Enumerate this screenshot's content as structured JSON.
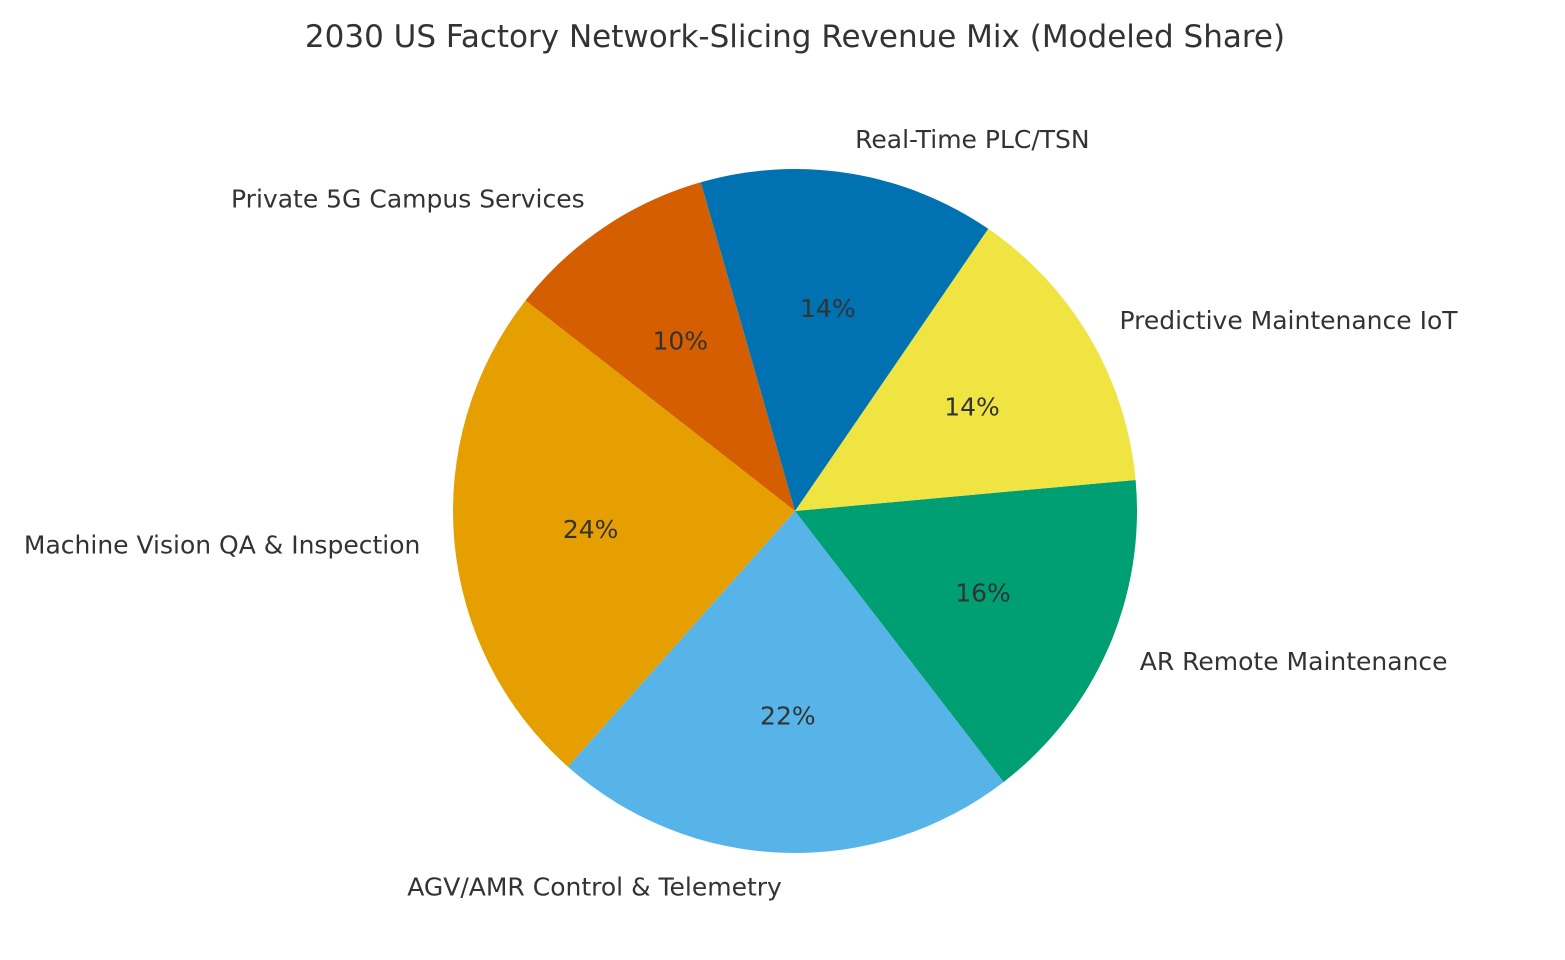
{
  "chart_data": {
    "type": "pie",
    "title": "2030 US Factory Network-Slicing Revenue Mix (Modeled Share)",
    "slices": [
      {
        "label": "Private 5G Campus Services",
        "value": 10,
        "pct_label": "10%",
        "color": "#D55E00"
      },
      {
        "label": "Machine Vision QA & Inspection",
        "value": 24,
        "pct_label": "24%",
        "color": "#E69F00"
      },
      {
        "label": "AGV/AMR Control & Telemetry",
        "value": 22,
        "pct_label": "22%",
        "color": "#56B4E9"
      },
      {
        "label": "AR Remote Maintenance",
        "value": 16,
        "pct_label": "16%",
        "color": "#009E73"
      },
      {
        "label": "Predictive Maintenance IoT",
        "value": 14,
        "pct_label": "14%",
        "color": "#F0E442"
      },
      {
        "label": "Real-Time PLC/TSN",
        "value": 14,
        "pct_label": "14%",
        "color": "#0072B2"
      }
    ],
    "start_angle_deg": 106,
    "direction": "counterclockwise",
    "legend": "none"
  }
}
